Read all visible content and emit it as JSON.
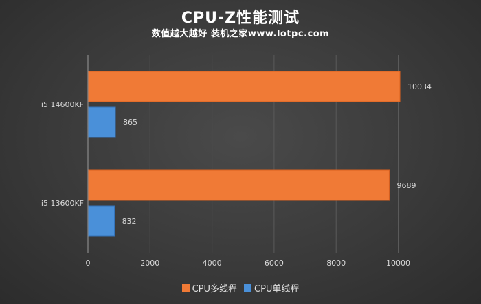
{
  "title": "CPU-Z性能测试",
  "subtitle": "数值越大越好 装机之家www.lotpc.com",
  "colors": {
    "multi": "#f07a36",
    "single": "#4a90d9",
    "axis_text": "#d8d8d8",
    "grid": "#5a5a5a",
    "background": "#3c3c3c"
  },
  "chart_data": {
    "type": "bar",
    "orientation": "horizontal",
    "categories": [
      "i5 14600KF",
      "i5 13600KF"
    ],
    "series": [
      {
        "name": "CPU多线程",
        "values": [
          10034,
          9689
        ]
      },
      {
        "name": "CPU单线程",
        "values": [
          865,
          832
        ]
      }
    ],
    "xlim": [
      0,
      11000
    ],
    "xticks": [
      "0",
      "2000",
      "4000",
      "6000",
      "8000",
      "10000"
    ],
    "grid": true,
    "legend": "bottom"
  }
}
